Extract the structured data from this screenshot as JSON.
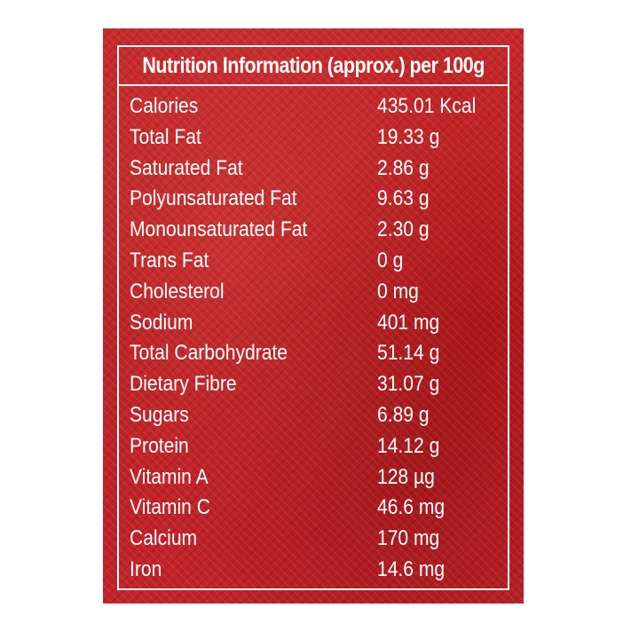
{
  "label": {
    "title": "Nutrition Information (approx.) per 100g",
    "rows": [
      {
        "name": "Calories",
        "amount": "435.01 Kcal"
      },
      {
        "name": "Total Fat",
        "amount": "19.33 g"
      },
      {
        "name": "Saturated Fat",
        "amount": "2.86 g"
      },
      {
        "name": "Polyunsaturated Fat",
        "amount": "9.63 g"
      },
      {
        "name": "Monounsaturated Fat",
        "amount": "2.30 g"
      },
      {
        "name": "Trans Fat",
        "amount": "0 g"
      },
      {
        "name": "Cholesterol",
        "amount": "0 mg"
      },
      {
        "name": "Sodium",
        "amount": "401 mg"
      },
      {
        "name": "Total Carbohydrate",
        "amount": "51.14 g"
      },
      {
        "name": "Dietary Fibre",
        "amount": "31.07 g"
      },
      {
        "name": "Sugars",
        "amount": "6.89 g"
      },
      {
        "name": "Protein",
        "amount": "14.12 g"
      },
      {
        "name": "Vitamin A",
        "amount": "128 µg"
      },
      {
        "name": "Vitamin C",
        "amount": "46.6 mg"
      },
      {
        "name": "Calcium",
        "amount": "170 mg"
      },
      {
        "name": "Iron",
        "amount": "14.6 mg"
      }
    ]
  },
  "colors": {
    "panel_background": "#c11f22",
    "text": "#ffffff",
    "border": "#ffffff"
  }
}
